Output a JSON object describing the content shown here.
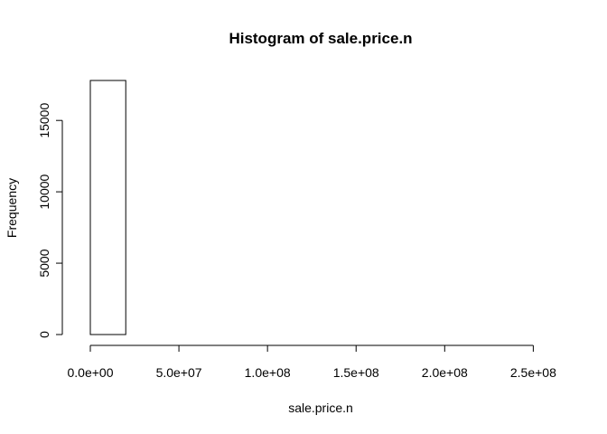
{
  "chart_data": {
    "type": "bar",
    "title": "Histogram of sale.price.n",
    "xlabel": "sale.price.n",
    "ylabel": "Frequency",
    "bins": [
      {
        "x0": 0,
        "x1": 20000000,
        "count": 17800
      },
      {
        "x0": 20000000,
        "x1": 40000000,
        "count": 0
      },
      {
        "x0": 40000000,
        "x1": 60000000,
        "count": 0
      },
      {
        "x0": 60000000,
        "x1": 80000000,
        "count": 0
      },
      {
        "x0": 80000000,
        "x1": 100000000,
        "count": 0
      },
      {
        "x0": 100000000,
        "x1": 120000000,
        "count": 0
      },
      {
        "x0": 120000000,
        "x1": 140000000,
        "count": 0
      },
      {
        "x0": 140000000,
        "x1": 160000000,
        "count": 0
      },
      {
        "x0": 160000000,
        "x1": 180000000,
        "count": 0
      },
      {
        "x0": 180000000,
        "x1": 200000000,
        "count": 0
      },
      {
        "x0": 200000000,
        "x1": 220000000,
        "count": 0
      },
      {
        "x0": 220000000,
        "x1": 240000000,
        "count": 0
      },
      {
        "x0": 240000000,
        "x1": 260000000,
        "count": 0
      }
    ],
    "xlim": [
      0,
      260000000
    ],
    "ylim": [
      0,
      17800
    ],
    "x_ticks": [
      {
        "value": 0,
        "label": "0.0e+00"
      },
      {
        "value": 50000000,
        "label": "5.0e+07"
      },
      {
        "value": 100000000,
        "label": "1.0e+08"
      },
      {
        "value": 150000000,
        "label": "1.5e+08"
      },
      {
        "value": 200000000,
        "label": "2.0e+08"
      },
      {
        "value": 250000000,
        "label": "2.5e+08"
      }
    ],
    "y_ticks": [
      {
        "value": 0,
        "label": "0"
      },
      {
        "value": 5000,
        "label": "5000"
      },
      {
        "value": 10000,
        "label": "10000"
      },
      {
        "value": 15000,
        "label": "15000"
      }
    ],
    "grid": false,
    "legend": "none",
    "colors": {
      "bar_fill": "#ffffff",
      "bar_stroke": "#000000",
      "axis": "#000000",
      "text": "#000000"
    }
  }
}
